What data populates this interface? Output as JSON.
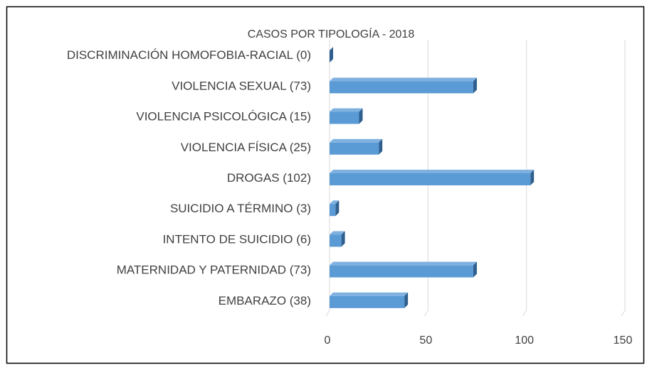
{
  "chart_data": {
    "type": "bar",
    "orientation": "horizontal",
    "title": "CASOS POR TIPOLOGÍA - 2018",
    "categories": [
      "DISCRIMINACIÓN HOMOFOBIA-RACIAL (0)",
      "VIOLENCIA SEXUAL (73)",
      "VIOLENCIA PSICOLÓGICA (15)",
      "VIOLENCIA FÍSICA (25)",
      "DROGAS (102)",
      "SUICIDIO A TÉRMINO (3)",
      "INTENTO DE SUICIDIO (6)",
      "MATERNIDAD Y PATERNIDAD (73)",
      "EMBARAZO (38)"
    ],
    "values": [
      0,
      73,
      15,
      25,
      102,
      3,
      6,
      73,
      38
    ],
    "color": "#5b9bd5",
    "xlim": [
      0,
      150
    ],
    "xticks": [
      0,
      50,
      100,
      150
    ],
    "grid": true
  }
}
